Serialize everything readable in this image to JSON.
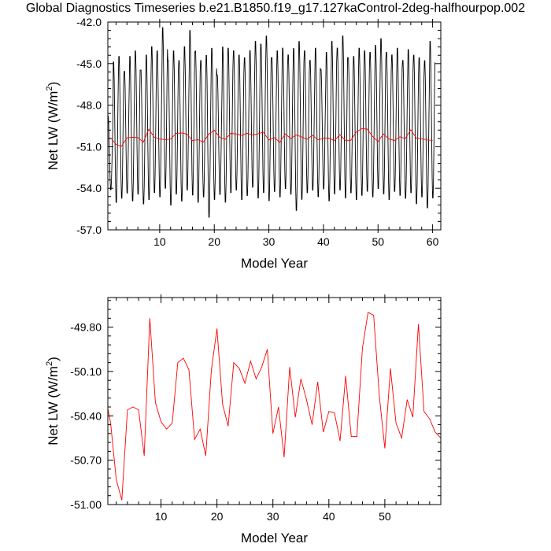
{
  "figure": {
    "title": "Global Diagnostics Timeseries b.e21.B1850.f19_g17.127kaControl-2deg-halfhourpop.002"
  },
  "chart_data": [
    {
      "type": "line",
      "xlabel": "Model Year",
      "ylabel_main": "Net LW (W/m",
      "ylabel_sup": "2",
      "ylabel_close": ")",
      "xlim": [
        0.5,
        61.5
      ],
      "ylim": [
        -57.0,
        -42.0
      ],
      "xticks": [
        10,
        20,
        30,
        40,
        50,
        60
      ],
      "xtick_labels": [
        "10",
        "20",
        "30",
        "40",
        "50",
        "60"
      ],
      "yticks": [
        -57.0,
        -54.0,
        -51.0,
        -48.0,
        -45.0,
        -42.0
      ],
      "ytick_labels": [
        "-57.0",
        "-54.0",
        "-51.0",
        "-48.0",
        "-45.0",
        "-42.0"
      ],
      "series": [
        {
          "color": "#000000",
          "description_points": "monthly values, seasonal cycle between about -56 and -42",
          "peaks": [
            -48.7,
            -44.7,
            -44.3,
            -45.4,
            -44.3,
            -43.9,
            -45.3,
            -44.2,
            -43.6,
            -43.9,
            -42.2,
            -44.6,
            -43.9,
            -44.6,
            -43.6,
            -42.4,
            -43.9,
            -44.6,
            -44.2,
            -43.7,
            -45.7,
            -43.6,
            -43.7,
            -43.9,
            -44.2,
            -44.4,
            -43.9,
            -43.2,
            -43.4,
            -42.8,
            -44.4,
            -43.9,
            -43.7,
            -44.2,
            -43.7,
            -43.2,
            -43.9,
            -44.6,
            -43.7,
            -45.3,
            -44.0,
            -43.2,
            -43.7,
            -42.8,
            -44.4,
            -44.3,
            -43.7,
            -43.9,
            -44.0,
            -43.5,
            -43.0,
            -44.0,
            -44.2,
            -43.7,
            -44.6,
            -43.8,
            -44.2,
            -44.4,
            -44.6,
            -43.2
          ],
          "troughs": [
            -54.2,
            -55.2,
            -54.9,
            -54.5,
            -55.1,
            -54.6,
            -55.3,
            -55.0,
            -54.5,
            -54.8,
            -54.2,
            -55.4,
            -54.6,
            -55.1,
            -54.3,
            -54.7,
            -55.2,
            -54.8,
            -56.3,
            -55.0,
            -54.6,
            -55.2,
            -54.5,
            -54.3,
            -55.0,
            -54.7,
            -54.1,
            -54.9,
            -54.5,
            -55.1,
            -54.4,
            -54.8,
            -54.2,
            -54.6,
            -55.8,
            -55.0,
            -54.5,
            -54.3,
            -54.8,
            -54.2,
            -55.1,
            -54.6,
            -54.3,
            -54.9,
            -54.5,
            -55.0,
            -54.7,
            -54.4,
            -54.8,
            -54.2,
            -54.6,
            -55.0,
            -54.4,
            -54.7,
            -54.9,
            -54.5,
            -55.3,
            -54.8,
            -55.6,
            -54.9
          ]
        },
        {
          "color": "#ff0000",
          "x": [
            1,
            2,
            3,
            4,
            5,
            6,
            7,
            8,
            9,
            10,
            11,
            12,
            13,
            14,
            15,
            16,
            17,
            18,
            19,
            20,
            21,
            22,
            23,
            24,
            25,
            26,
            27,
            28,
            29,
            30,
            31,
            32,
            33,
            34,
            35,
            36,
            37,
            38,
            39,
            40,
            41,
            42,
            43,
            44,
            45,
            46,
            47,
            48,
            49,
            50,
            51,
            52,
            53,
            54,
            55,
            56,
            57,
            58,
            59,
            60
          ],
          "values": [
            -50.35,
            -50.83,
            -50.97,
            -50.36,
            -50.32,
            -50.34,
            -50.67,
            -49.74,
            -50.31,
            -50.44,
            -50.49,
            -50.45,
            -50.04,
            -50.01,
            -50.09,
            -50.56,
            -50.49,
            -50.67,
            -50.09,
            -49.81,
            -50.32,
            -50.47,
            -50.04,
            -50.08,
            -50.18,
            -50.03,
            -50.15,
            -50.07,
            -49.95,
            -50.52,
            -50.34,
            -50.68,
            -50.07,
            -50.41,
            -50.15,
            -50.29,
            -50.46,
            -50.17,
            -50.51,
            -50.37,
            -50.38,
            -50.57,
            -50.13,
            -50.54,
            -50.54,
            -49.94,
            -49.7,
            -49.72,
            -50.26,
            -50.62,
            -50.08,
            -50.45,
            -50.55,
            -50.29,
            -50.41,
            -49.78,
            -50.37,
            -50.42,
            -50.51,
            -50.55
          ]
        }
      ]
    },
    {
      "type": "line",
      "xlabel": "Model Year",
      "ylabel_main": "Net LW (W/m",
      "ylabel_sup": "2",
      "ylabel_close": ")",
      "xlim": [
        0.5,
        60.0
      ],
      "ylim": [
        -51.0,
        -49.6
      ],
      "xticks": [
        10,
        20,
        30,
        40,
        50
      ],
      "xtick_labels": [
        "10",
        "20",
        "30",
        "40",
        "50"
      ],
      "yticks": [
        -51.0,
        -50.7,
        -50.4,
        -50.1,
        -49.8
      ],
      "ytick_labels": [
        "-51.00",
        "-50.70",
        "-50.40",
        "-50.10",
        "-49.80"
      ],
      "series": [
        {
          "color": "#ff0000",
          "x": [
            0.5,
            1,
            2,
            3,
            4,
            5,
            6,
            7,
            8,
            9,
            10,
            11,
            12,
            13,
            14,
            15,
            16,
            17,
            18,
            19,
            20,
            21,
            22,
            23,
            24,
            25,
            26,
            27,
            28,
            29,
            30,
            31,
            32,
            33,
            34,
            35,
            36,
            37,
            38,
            39,
            40,
            41,
            42,
            43,
            44,
            45,
            46,
            47,
            48,
            49,
            50,
            51,
            52,
            53,
            54,
            55,
            56,
            57,
            58,
            59,
            60
          ],
          "values": [
            -50.35,
            -50.45,
            -50.83,
            -50.97,
            -50.36,
            -50.34,
            -50.36,
            -50.67,
            -49.74,
            -50.31,
            -50.44,
            -50.49,
            -50.45,
            -50.04,
            -50.01,
            -50.09,
            -50.56,
            -50.49,
            -50.67,
            -50.09,
            -49.81,
            -50.32,
            -50.47,
            -50.04,
            -50.08,
            -50.18,
            -50.03,
            -50.15,
            -50.07,
            -49.95,
            -50.52,
            -50.34,
            -50.68,
            -50.07,
            -50.41,
            -50.15,
            -50.29,
            -50.46,
            -50.17,
            -50.51,
            -50.37,
            -50.38,
            -50.57,
            -50.13,
            -50.54,
            -50.54,
            -49.94,
            -49.7,
            -49.72,
            -50.26,
            -50.62,
            -50.08,
            -50.45,
            -50.55,
            -50.29,
            -50.41,
            -49.78,
            -50.37,
            -50.42,
            -50.51,
            -50.55
          ]
        }
      ]
    }
  ]
}
